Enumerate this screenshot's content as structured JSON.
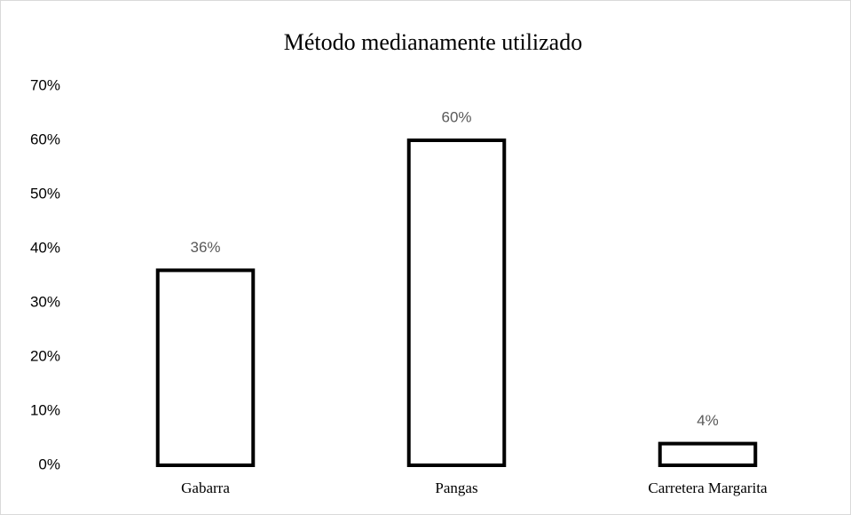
{
  "chart_data": {
    "type": "bar",
    "title": "Método medianamente utilizado",
    "categories": [
      "Gabarra",
      "Pangas",
      "Carretera Margarita"
    ],
    "values": [
      36,
      60,
      4
    ],
    "value_labels": [
      "36%",
      "60%",
      "4%"
    ],
    "color": "#ffffff",
    "edge_color": "#000000",
    "ylim": [
      0,
      70
    ],
    "yticks": [
      {
        "value": 0,
        "label": "0%"
      },
      {
        "value": 10,
        "label": "10%"
      },
      {
        "value": 20,
        "label": "20%"
      },
      {
        "value": 30,
        "label": "30%"
      },
      {
        "value": 40,
        "label": "40%"
      },
      {
        "value": 50,
        "label": "50%"
      },
      {
        "value": 60,
        "label": "60%"
      },
      {
        "value": 70,
        "label": "70%"
      }
    ],
    "grid": false
  }
}
